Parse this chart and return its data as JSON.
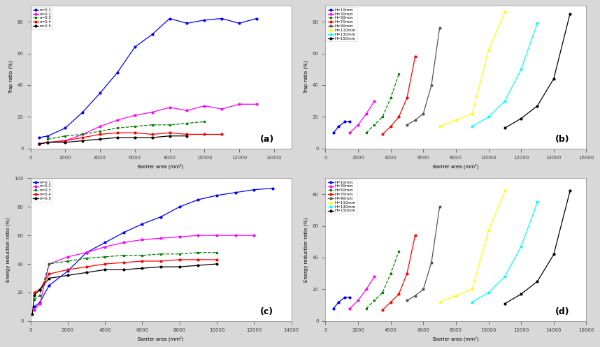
{
  "panel_a": {
    "title": "(a)",
    "xlabel": "Barrier area (mm²)",
    "ylabel": "Trap ratio (%)",
    "series": [
      {
        "label": "n=0.1",
        "color": "blue",
        "ls": "-",
        "marker": "o",
        "x": [
          500,
          1000,
          2000,
          3000,
          4000,
          5000,
          6000,
          7000,
          8000,
          9000,
          10000,
          11000,
          12000,
          13000
        ],
        "y": [
          7,
          8,
          13,
          23,
          35,
          48,
          64,
          72,
          82,
          79,
          81,
          82,
          79,
          82
        ]
      },
      {
        "label": "n=0.2",
        "color": "magenta",
        "ls": "-",
        "marker": "o",
        "x": [
          500,
          1000,
          2000,
          3000,
          4000,
          5000,
          6000,
          7000,
          8000,
          9000,
          10000,
          11000,
          12000,
          13000
        ],
        "y": [
          3,
          4,
          5,
          9,
          14,
          18,
          21,
          23,
          26,
          24,
          27,
          25,
          28,
          28
        ]
      },
      {
        "label": "n=0.3",
        "color": "green",
        "ls": "--",
        "marker": "s",
        "x": [
          1000,
          2000,
          3000,
          4000,
          5000,
          6000,
          7000,
          8000,
          9000,
          10000
        ],
        "y": [
          6,
          8,
          9,
          11,
          13,
          14,
          15,
          15,
          16,
          17
        ]
      },
      {
        "label": "n=0.4",
        "color": "red",
        "ls": "-",
        "marker": "o",
        "x": [
          500,
          1000,
          2000,
          3000,
          4000,
          5000,
          6000,
          7000,
          8000,
          9000,
          10000,
          11000
        ],
        "y": [
          3,
          4,
          5,
          7,
          9,
          10,
          10,
          9,
          10,
          9,
          9,
          9
        ]
      },
      {
        "label": "n=0.5",
        "color": "black",
        "ls": "-",
        "marker": "o",
        "x": [
          500,
          1000,
          2000,
          3000,
          4000,
          5000,
          6000,
          7000,
          8000,
          9000
        ],
        "y": [
          3,
          4,
          4,
          5,
          6,
          7,
          7,
          7,
          8,
          8
        ]
      }
    ],
    "xlim": [
      0,
      15000
    ],
    "ylim": [
      0,
      90
    ]
  },
  "panel_b": {
    "title": "(b)",
    "xlabel": "Barrier area (mm²)",
    "ylabel": "Trap ratio (%)",
    "series": [
      {
        "label": "H=10mm",
        "color": "blue",
        "ls": "-",
        "marker": "o",
        "x": [
          500,
          800,
          1200,
          1500
        ],
        "y": [
          10,
          14,
          17,
          17
        ]
      },
      {
        "label": "H=30mm",
        "color": "magenta",
        "ls": "-",
        "marker": "o",
        "x": [
          1500,
          2000,
          2500,
          3000
        ],
        "y": [
          10,
          15,
          22,
          30
        ]
      },
      {
        "label": "H=50mm",
        "color": "green",
        "ls": "--",
        "marker": "s",
        "x": [
          2500,
          3000,
          3500,
          4000,
          4500
        ],
        "y": [
          10,
          15,
          20,
          32,
          47
        ]
      },
      {
        "label": "H=70mm",
        "color": "red",
        "ls": "-",
        "marker": "o",
        "x": [
          3500,
          4000,
          4500,
          5000,
          5500
        ],
        "y": [
          9,
          14,
          20,
          32,
          58
        ]
      },
      {
        "label": "H=90mm",
        "color": "#555555",
        "ls": "-",
        "marker": "o",
        "x": [
          5000,
          5500,
          6000,
          6500,
          7000
        ],
        "y": [
          15,
          18,
          22,
          40,
          76
        ]
      },
      {
        "label": "H=110mm",
        "color": "yellow",
        "ls": "-",
        "marker": "o",
        "x": [
          7000,
          8000,
          9000,
          10000,
          11000
        ],
        "y": [
          14,
          18,
          22,
          62,
          86
        ]
      },
      {
        "label": "H=130mm",
        "color": "cyan",
        "ls": "-",
        "marker": "o",
        "x": [
          9000,
          10000,
          11000,
          12000,
          13000
        ],
        "y": [
          14,
          20,
          30,
          50,
          79
        ]
      },
      {
        "label": "H=150mm",
        "color": "black",
        "ls": "-",
        "marker": "o",
        "x": [
          11000,
          12000,
          13000,
          14000,
          15000
        ],
        "y": [
          13,
          19,
          27,
          44,
          85
        ]
      }
    ],
    "xlim": [
      0,
      16000
    ],
    "ylim": [
      0,
      90
    ]
  },
  "panel_c": {
    "title": "(c)",
    "xlabel": "Barrier area (mm²)",
    "ylabel": "Energy reduction ratio (%)",
    "series": [
      {
        "label": "n=0.1",
        "color": "blue",
        "ls": "-",
        "marker": "o",
        "x": [
          200,
          500,
          1000,
          2000,
          3000,
          4000,
          5000,
          6000,
          7000,
          8000,
          9000,
          10000,
          11000,
          12000,
          13000
        ],
        "y": [
          10,
          13,
          25,
          35,
          48,
          55,
          62,
          68,
          73,
          80,
          85,
          88,
          90,
          92,
          93
        ]
      },
      {
        "label": "n=0.2",
        "color": "magenta",
        "ls": "-",
        "marker": "o",
        "x": [
          200,
          500,
          1000,
          2000,
          3000,
          4000,
          5000,
          6000,
          7000,
          8000,
          9000,
          10000,
          11000,
          12000
        ],
        "y": [
          8,
          12,
          40,
          45,
          48,
          52,
          55,
          57,
          58,
          59,
          60,
          60,
          60,
          60
        ]
      },
      {
        "label": "n=0.3",
        "color": "green",
        "ls": "--",
        "marker": "s",
        "x": [
          200,
          500,
          1000,
          2000,
          3000,
          4000,
          5000,
          6000,
          7000,
          8000,
          9000,
          10000
        ],
        "y": [
          15,
          18,
          40,
          42,
          44,
          45,
          46,
          46,
          47,
          47,
          48,
          48
        ]
      },
      {
        "label": "n=0.4",
        "color": "red",
        "ls": "-",
        "marker": "o",
        "x": [
          200,
          500,
          1000,
          2000,
          3000,
          4000,
          5000,
          6000,
          7000,
          8000,
          9000,
          10000
        ],
        "y": [
          20,
          22,
          33,
          36,
          38,
          40,
          41,
          42,
          42,
          43,
          43,
          43
        ]
      },
      {
        "label": "n=0.5",
        "color": "black",
        "ls": "-",
        "marker": "o",
        "x": [
          100,
          200,
          500,
          1000,
          2000,
          3000,
          4000,
          5000,
          6000,
          7000,
          8000,
          9000,
          10000
        ],
        "y": [
          5,
          18,
          22,
          30,
          32,
          34,
          36,
          36,
          37,
          38,
          38,
          39,
          40
        ]
      }
    ],
    "xlim": [
      0,
      14000
    ],
    "ylim": [
      0,
      100
    ]
  },
  "panel_d": {
    "title": "(d)",
    "xlabel": "Barrier area (mm²)",
    "ylabel": "Energy reduction ratio (%)",
    "series": [
      {
        "label": "H=10mm",
        "color": "blue",
        "ls": "-",
        "marker": "o",
        "x": [
          500,
          800,
          1200,
          1500
        ],
        "y": [
          8,
          12,
          15,
          15
        ]
      },
      {
        "label": "H=30mm",
        "color": "magenta",
        "ls": "-",
        "marker": "o",
        "x": [
          1500,
          2000,
          2500,
          3000
        ],
        "y": [
          8,
          13,
          20,
          28
        ]
      },
      {
        "label": "H=50mm",
        "color": "green",
        "ls": "--",
        "marker": "s",
        "x": [
          2500,
          3000,
          3500,
          4000,
          4500
        ],
        "y": [
          8,
          13,
          18,
          30,
          44
        ]
      },
      {
        "label": "H=70mm",
        "color": "red",
        "ls": "-",
        "marker": "o",
        "x": [
          3500,
          4000,
          4500,
          5000,
          5500
        ],
        "y": [
          7,
          12,
          17,
          30,
          54
        ]
      },
      {
        "label": "H=90mm",
        "color": "#555555",
        "ls": "-",
        "marker": "o",
        "x": [
          5000,
          5500,
          6000,
          6500,
          7000
        ],
        "y": [
          13,
          16,
          20,
          37,
          72
        ]
      },
      {
        "label": "H=110mm",
        "color": "yellow",
        "ls": "-",
        "marker": "o",
        "x": [
          7000,
          8000,
          9000,
          10000,
          11000
        ],
        "y": [
          12,
          16,
          20,
          57,
          82
        ]
      },
      {
        "label": "H=130mm",
        "color": "cyan",
        "ls": "-",
        "marker": "o",
        "x": [
          9000,
          10000,
          11000,
          12000,
          13000
        ],
        "y": [
          12,
          18,
          28,
          47,
          75
        ]
      },
      {
        "label": "H=150mm",
        "color": "black",
        "ls": "-",
        "marker": "o",
        "x": [
          11000,
          12000,
          13000,
          14000,
          15000
        ],
        "y": [
          11,
          17,
          25,
          42,
          82
        ]
      }
    ],
    "xlim": [
      0,
      16000
    ],
    "ylim": [
      0,
      90
    ]
  },
  "bg_color": "#d8d8d8",
  "plot_bg": "#ffffff"
}
